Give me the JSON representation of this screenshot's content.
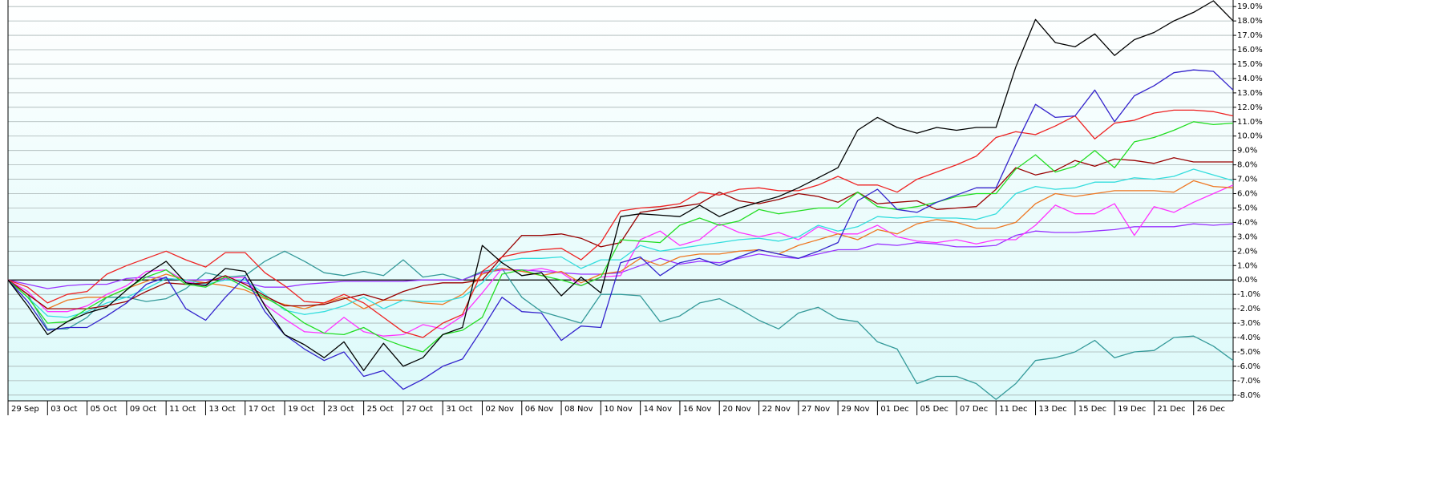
{
  "chart_data": {
    "type": "line",
    "grid": true,
    "categories": [
      "29 Sep",
      null,
      "03 Oct",
      null,
      "05 Oct",
      null,
      "09 Oct",
      null,
      "11 Oct",
      null,
      "13 Oct",
      null,
      "17 Oct",
      null,
      "19 Oct",
      null,
      "23 Oct",
      null,
      "25 Oct",
      null,
      "27 Oct",
      null,
      "31 Oct",
      null,
      "02 Nov",
      null,
      "06 Nov",
      null,
      "08 Nov",
      null,
      "10 Nov",
      null,
      "14 Nov",
      null,
      "16 Nov",
      null,
      "20 Nov",
      null,
      "22 Nov",
      null,
      "27 Nov",
      null,
      "29 Nov",
      null,
      "01 Dec",
      null,
      "05 Dec",
      null,
      "07 Dec",
      null,
      "11 Dec",
      null,
      "13 Dec",
      null,
      "15 Dec",
      null,
      "19 Dec",
      null,
      "21 Dec",
      null,
      "26 Dec",
      null,
      null
    ],
    "ylim": [
      -8.4,
      19.4
    ],
    "yticks": [
      {
        "value": -8,
        "label": "-8.0%"
      },
      {
        "value": -7,
        "label": "-7.0%"
      },
      {
        "value": -6,
        "label": "-6.0%"
      },
      {
        "value": -5,
        "label": "-5.0%"
      },
      {
        "value": -4,
        "label": "-4.0%"
      },
      {
        "value": -3,
        "label": "-3.0%"
      },
      {
        "value": -2,
        "label": "-2.0%"
      },
      {
        "value": -1,
        "label": "-1.0%"
      },
      {
        "value": 0,
        "label": "0.0%"
      },
      {
        "value": 1,
        "label": "1.0%"
      },
      {
        "value": 2,
        "label": "2.0%"
      },
      {
        "value": 3,
        "label": "3.0%"
      },
      {
        "value": 4,
        "label": "4.0%"
      },
      {
        "value": 5,
        "label": "5.0%"
      },
      {
        "value": 6,
        "label": "6.0%"
      },
      {
        "value": 7,
        "label": "7.0%"
      },
      {
        "value": 8,
        "label": "8.0%"
      },
      {
        "value": 9,
        "label": "9.0%"
      },
      {
        "value": 10,
        "label": "10.0%"
      },
      {
        "value": 11,
        "label": "11.0%"
      },
      {
        "value": 12,
        "label": "12.0%"
      },
      {
        "value": 13,
        "label": "13.0%"
      },
      {
        "value": 14,
        "label": "14.0%"
      },
      {
        "value": 15,
        "label": "15.0%"
      },
      {
        "value": 16,
        "label": "16.0%"
      },
      {
        "value": 17,
        "label": "17.0%"
      },
      {
        "value": 18,
        "label": "18.0%"
      },
      {
        "value": 19,
        "label": "19.0%"
      }
    ],
    "series": [
      {
        "color": "#339999",
        "values": [
          0,
          -1.0,
          -3.4,
          -3.4,
          -2.6,
          -1.2,
          -1.2,
          -1.5,
          -1.3,
          -0.6,
          0.5,
          0.2,
          0.3,
          1.3,
          2.0,
          1.3,
          0.5,
          0.3,
          0.6,
          0.3,
          1.4,
          0.2,
          0.4,
          0,
          0.6,
          0.8,
          -1.2,
          -2.2,
          -2.6,
          -3.0,
          -1.0,
          -1.0,
          -1.1,
          -2.9,
          -2.5,
          -1.6,
          -1.3,
          -2.0,
          -2.8,
          -3.4,
          -2.3,
          -1.9,
          -2.7,
          -2.9,
          -4.3,
          -4.8,
          -7.2,
          -6.7,
          -6.7,
          -7.2,
          -8.3,
          -7.2,
          -5.6,
          -5.4,
          -5.0,
          -4.2,
          -5.4,
          -5.0,
          -4.9,
          -4.0,
          -3.9,
          -4.6,
          -5.6
        ]
      },
      {
        "color": "#9933ff",
        "values": [
          0,
          -0.3,
          -0.6,
          -0.4,
          -0.3,
          -0.3,
          0.1,
          0.2,
          0.1,
          0,
          0,
          0.1,
          -0.2,
          -0.5,
          -0.5,
          -0.3,
          -0.2,
          -0.1,
          -0.1,
          -0.1,
          -0.1,
          0,
          0,
          0,
          0.5,
          0.7,
          0.7,
          0.6,
          0.5,
          0.4,
          0.4,
          0.5,
          1.0,
          1.5,
          1.1,
          1.3,
          1.2,
          1.5,
          1.8,
          1.6,
          1.5,
          1.8,
          2.1,
          2.1,
          2.5,
          2.4,
          2.6,
          2.5,
          2.3,
          2.3,
          2.4,
          3.1,
          3.4,
          3.3,
          3.3,
          3.4,
          3.5,
          3.7,
          3.7,
          3.7,
          3.9,
          3.8,
          3.9
        ]
      },
      {
        "color": "#ff33ff",
        "values": [
          0,
          -0.8,
          -2.2,
          -2.2,
          -1.8,
          -1.0,
          -0.4,
          0.6,
          0.7,
          -0.1,
          -0.4,
          0.1,
          0.2,
          -1.7,
          -2.7,
          -3.6,
          -3.7,
          -2.6,
          -3.6,
          -3.9,
          -3.8,
          -3.1,
          -3.4,
          -2.5,
          -0.9,
          0.8,
          0.6,
          0.8,
          0.5,
          -0.4,
          0.2,
          0.3,
          2.8,
          3.4,
          2.4,
          2.8,
          3.9,
          3.3,
          3.0,
          3.3,
          2.8,
          3.7,
          3.2,
          3.2,
          3.8,
          3.0,
          2.7,
          2.6,
          2.8,
          2.5,
          2.8,
          2.8,
          3.8,
          5.2,
          4.6,
          4.6,
          5.3,
          3.1,
          5.1,
          4.7,
          5.4,
          6.0,
          6.6
        ]
      },
      {
        "color": "#ee7722",
        "values": [
          0,
          -1.0,
          -2.0,
          -1.4,
          -1.2,
          -1.2,
          -0.6,
          -0.1,
          0.4,
          0,
          -0.2,
          -0.4,
          -0.7,
          -1.3,
          -1.7,
          -2.0,
          -1.6,
          -1.2,
          -2.0,
          -1.4,
          -1.4,
          -1.6,
          -1.7,
          -1.0,
          0.4,
          0.8,
          0.6,
          0.3,
          0.6,
          -0.2,
          0.4,
          0.6,
          1.5,
          1.0,
          1.6,
          1.8,
          1.8,
          2.0,
          2.1,
          1.8,
          2.4,
          2.8,
          3.2,
          2.8,
          3.5,
          3.2,
          3.9,
          4.2,
          4.0,
          3.6,
          3.6,
          4.0,
          5.3,
          6.0,
          5.8,
          6.0,
          6.2,
          6.2,
          6.2,
          6.1,
          6.9,
          6.5,
          6.4
        ]
      },
      {
        "color": "#33dddd",
        "values": [
          0,
          -1.2,
          -2.5,
          -2.6,
          -2.2,
          -1.6,
          -1.2,
          -0.6,
          0.1,
          0,
          -0.3,
          0,
          0,
          -1.0,
          -2.1,
          -2.4,
          -2.2,
          -1.8,
          -1.2,
          -2.0,
          -1.4,
          -1.5,
          -1.5,
          -1.2,
          -0.2,
          1.3,
          1.5,
          1.5,
          1.6,
          0.8,
          1.4,
          1.4,
          2.4,
          2.0,
          2.2,
          2.4,
          2.6,
          2.8,
          2.9,
          2.7,
          3.0,
          3.8,
          3.4,
          3.7,
          4.4,
          4.3,
          4.4,
          4.3,
          4.3,
          4.2,
          4.6,
          6.0,
          6.5,
          6.3,
          6.4,
          6.8,
          6.8,
          7.1,
          7.0,
          7.2,
          7.7,
          7.3,
          6.9
        ]
      },
      {
        "color": "#990000",
        "values": [
          0,
          -1.0,
          -2.0,
          -2.0,
          -2.0,
          -1.8,
          -1.5,
          -0.8,
          -0.2,
          -0.3,
          -0.2,
          0.3,
          -0.3,
          -1.1,
          -1.8,
          -1.8,
          -1.7,
          -1.3,
          -1.0,
          -1.4,
          -0.8,
          -0.4,
          -0.2,
          -0.2,
          0,
          1.6,
          3.1,
          3.1,
          3.2,
          2.9,
          2.3,
          2.6,
          4.7,
          4.9,
          5.1,
          5.3,
          6.1,
          5.5,
          5.3,
          5.6,
          6.0,
          5.8,
          5.4,
          6.1,
          5.3,
          5.4,
          5.5,
          4.9,
          5.0,
          5.1,
          6.3,
          7.8,
          7.3,
          7.6,
          8.3,
          7.9,
          8.4,
          8.3,
          8.1,
          8.5,
          8.2,
          8.2,
          8.2
        ]
      },
      {
        "color": "#22dd22",
        "values": [
          0,
          -1.2,
          -3.0,
          -2.9,
          -2.0,
          -1.2,
          -0.6,
          0.2,
          0.7,
          -0.3,
          -0.5,
          0.2,
          -0.5,
          -1.2,
          -2.0,
          -3.0,
          -3.7,
          -3.8,
          -3.3,
          -4.1,
          -4.6,
          -5.0,
          -3.8,
          -3.5,
          -2.6,
          0.4,
          0.7,
          0.3,
          0,
          -0.4,
          0.2,
          2.8,
          2.7,
          2.6,
          3.8,
          4.3,
          3.8,
          4.1,
          4.9,
          4.6,
          4.8,
          5.0,
          5.0,
          6.1,
          5.1,
          4.9,
          5.1,
          5.4,
          5.8,
          6.0,
          6.0,
          7.7,
          8.7,
          7.5,
          7.9,
          9.0,
          7.8,
          9.6,
          9.9,
          10.4,
          11.0,
          10.8,
          10.9
        ]
      },
      {
        "color": "#ee2222",
        "values": [
          0,
          -0.5,
          -1.6,
          -1.0,
          -0.8,
          0.4,
          1.0,
          1.5,
          2.0,
          1.4,
          0.9,
          1.9,
          1.9,
          0.5,
          -0.4,
          -1.5,
          -1.6,
          -1.0,
          -1.6,
          -2.6,
          -3.6,
          -4.0,
          -3.0,
          -2.4,
          0.6,
          1.6,
          1.9,
          2.1,
          2.2,
          1.4,
          2.6,
          4.8,
          5.0,
          5.1,
          5.3,
          6.1,
          5.9,
          6.3,
          6.4,
          6.2,
          6.2,
          6.6,
          7.2,
          6.6,
          6.6,
          6.1,
          7.0,
          7.5,
          8.0,
          8.6,
          9.9,
          10.3,
          10.1,
          10.7,
          11.4,
          9.8,
          10.9,
          11.1,
          11.6,
          11.8,
          11.8,
          11.7,
          11.4
        ]
      },
      {
        "color": "#3322cc",
        "values": [
          0,
          -1.5,
          -3.5,
          -3.3,
          -3.3,
          -2.5,
          -1.6,
          -0.3,
          0.2,
          -2,
          -2.8,
          -1.2,
          0.2,
          -2.2,
          -3.8,
          -4.8,
          -5.6,
          -5.0,
          -6.7,
          -6.3,
          -7.6,
          -6.9,
          -6.0,
          -5.5,
          -3.4,
          -1.2,
          -2.2,
          -2.3,
          -4.2,
          -3.2,
          -3.3,
          1.2,
          1.6,
          0.3,
          1.2,
          1.5,
          1.0,
          1.6,
          2.1,
          1.8,
          1.5,
          2.0,
          2.6,
          5.5,
          6.3,
          4.9,
          4.7,
          5.4,
          5.9,
          6.4,
          6.4,
          9.4,
          12.2,
          11.3,
          11.4,
          13.2,
          11.0,
          12.8,
          13.5,
          14.4,
          14.6,
          14.5,
          13.2
        ]
      },
      {
        "color": "#000000",
        "values": [
          0,
          -1.8,
          -3.8,
          -2.9,
          -2.3,
          -1.9,
          -0.7,
          0.4,
          1.3,
          -0.2,
          -0.4,
          0.8,
          0.6,
          -1.8,
          -3.8,
          -4.5,
          -5.4,
          -4.3,
          -6.3,
          -4.4,
          -6.0,
          -5.4,
          -3.8,
          -3.3,
          2.4,
          1.2,
          0.3,
          0.5,
          -1.1,
          0.2,
          -0.9,
          4.4,
          4.6,
          4.5,
          4.4,
          5.2,
          4.4,
          5.0,
          5.4,
          5.8,
          6.4,
          7.1,
          7.8,
          10.4,
          11.3,
          10.6,
          10.2,
          10.6,
          10.4,
          10.6,
          10.6,
          14.8,
          18.1,
          16.5,
          16.2,
          17.1,
          15.6,
          16.7,
          17.2,
          18.0,
          18.6,
          19.4,
          18.0
        ]
      }
    ]
  }
}
